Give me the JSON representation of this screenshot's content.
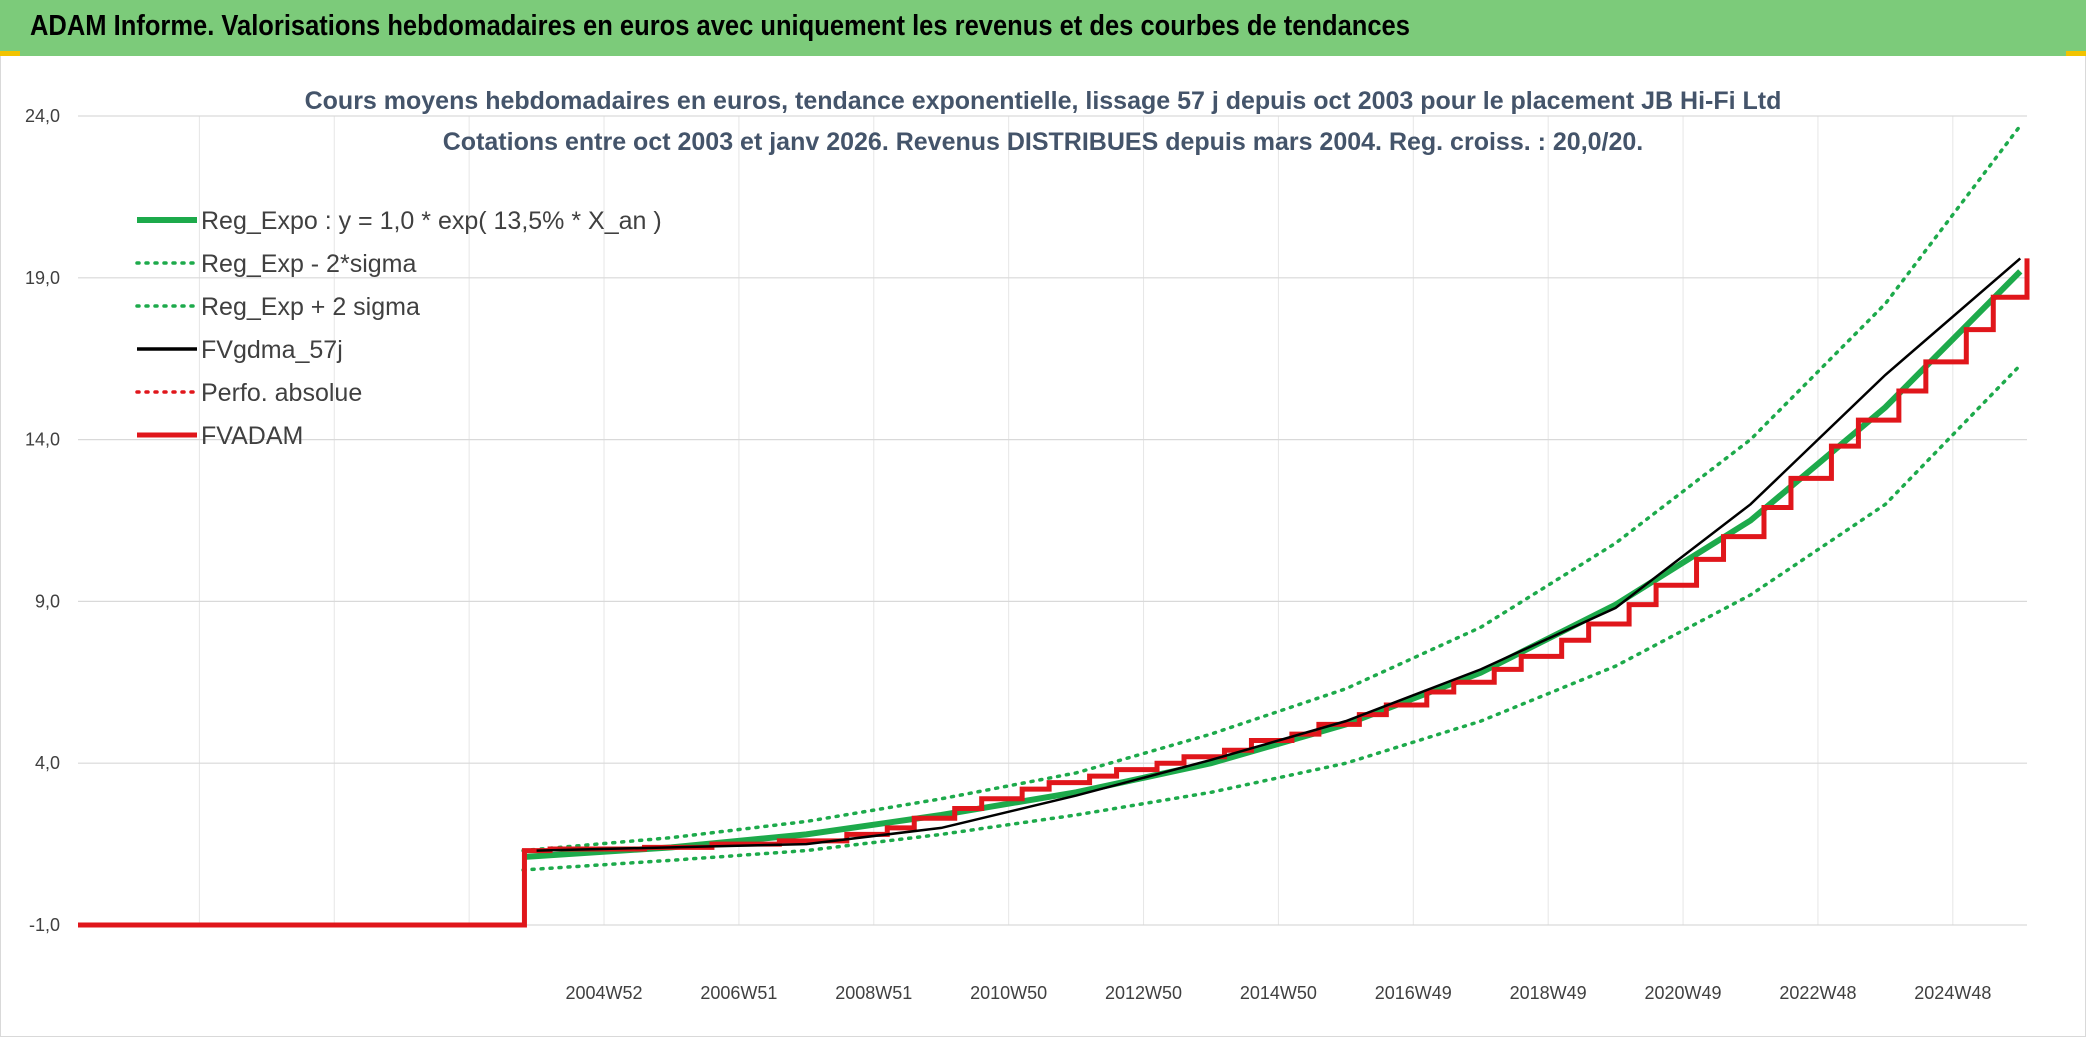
{
  "header": {
    "title": "ADAM Informe. Valorisations hebdomadaires en euros avec uniquement les revenus et des courbes de tendances"
  },
  "colors": {
    "header_bg": "#7CCB7A",
    "accent": "#F2C300",
    "green": "#1DAA4B",
    "red": "#E0161B",
    "black": "#000000",
    "title": "#44546A"
  },
  "chart_data": {
    "type": "line",
    "title": "Cours moyens hebdomadaires en euros, tendance exponentielle, lissage 57 j depuis oct 2003 pour le placement JB Hi-Fi Ltd",
    "subtitle": "Cotations entre oct 2003 et janv 2026. Revenus DISTRIBUES depuis mars 2004. Reg. croiss. : 20,0/20.",
    "xlabel": "",
    "ylabel": "",
    "x_range": [
      1997.2,
      2026.1
    ],
    "ylim": [
      -1.0,
      24.0
    ],
    "y_ticks": [
      "-1,0",
      "4,0",
      "9,0",
      "14,0",
      "19,0",
      "24,0"
    ],
    "y_tick_values": [
      -1,
      4,
      9,
      14,
      19,
      24
    ],
    "x_tick_labels": [
      "2004W52",
      "2006W51",
      "2008W51",
      "2010W50",
      "2012W50",
      "2014W50",
      "2016W49",
      "2018W49",
      "2020W49",
      "2022W48",
      "2024W48"
    ],
    "x_tick_values": [
      2005.0,
      2007.0,
      2009.0,
      2011.0,
      2013.0,
      2015.0,
      2017.0,
      2019.0,
      2021.0,
      2023.0,
      2025.0
    ],
    "grid": true,
    "legend_position": "top-left",
    "series": [
      {
        "name": "Reg_Expo : y = 1,0 * exp( 13,5% *  X_an )",
        "style": "solid-thick",
        "color": "#1DAA4B",
        "x": [
          2003.8,
          2006,
          2008,
          2010,
          2012,
          2014,
          2016,
          2018,
          2020,
          2022,
          2024,
          2026
        ],
        "y": [
          1.1,
          1.4,
          1.8,
          2.4,
          3.1,
          4.0,
          5.2,
          6.8,
          8.9,
          11.5,
          15.0,
          19.2
        ]
      },
      {
        "name": "Reg_Exp - 2*sigma",
        "style": "dotted",
        "color": "#1DAA4B",
        "x": [
          2003.8,
          2006,
          2008,
          2010,
          2012,
          2014,
          2016,
          2018,
          2020,
          2022,
          2024,
          2026
        ],
        "y": [
          0.7,
          1.0,
          1.3,
          1.8,
          2.4,
          3.1,
          4.0,
          5.3,
          7.0,
          9.2,
          12.0,
          16.3
        ]
      },
      {
        "name": "Reg_Exp + 2 sigma",
        "style": "dotted",
        "color": "#1DAA4B",
        "x": [
          2003.8,
          2006,
          2008,
          2010,
          2012,
          2014,
          2016,
          2018,
          2020,
          2022,
          2024,
          2026
        ],
        "y": [
          1.3,
          1.7,
          2.2,
          2.9,
          3.7,
          4.9,
          6.3,
          8.2,
          10.8,
          14.0,
          18.2,
          23.7
        ]
      },
      {
        "name": "FVgdma_57j",
        "style": "solid",
        "color": "#000000",
        "x": [
          2004.0,
          2006,
          2008,
          2010,
          2012,
          2014,
          2016,
          2018,
          2020,
          2022,
          2024,
          2026
        ],
        "y": [
          1.3,
          1.4,
          1.5,
          2.0,
          3.0,
          4.1,
          5.3,
          6.9,
          8.8,
          12.0,
          16.0,
          19.6
        ]
      },
      {
        "name": "Perfo. absolue",
        "style": "dotted",
        "color": "#E0161B",
        "x": [],
        "y": []
      },
      {
        "name": "FVADAM",
        "style": "step-thick",
        "color": "#E0161B",
        "x": [
          1997.2,
          2003.8,
          2003.82,
          2004.2,
          2005.6,
          2006.6,
          2007.6,
          2008.6,
          2009.2,
          2009.6,
          2010.2,
          2010.6,
          2011.2,
          2011.6,
          2012.2,
          2012.6,
          2013.2,
          2013.6,
          2014.2,
          2014.6,
          2015.2,
          2015.6,
          2016.2,
          2016.6,
          2017.2,
          2017.6,
          2018.2,
          2018.6,
          2019.2,
          2019.6,
          2020.2,
          2020.6,
          2021.2,
          2021.6,
          2022.2,
          2022.6,
          2023.2,
          2023.6,
          2024.2,
          2024.6,
          2025.2,
          2025.6,
          2026.1
        ],
        "y": [
          -1.0,
          -1.0,
          1.3,
          1.35,
          1.4,
          1.5,
          1.6,
          1.8,
          2.0,
          2.3,
          2.6,
          2.9,
          3.2,
          3.4,
          3.6,
          3.8,
          4.0,
          4.2,
          4.4,
          4.7,
          4.9,
          5.2,
          5.5,
          5.8,
          6.2,
          6.5,
          6.9,
          7.3,
          7.8,
          8.3,
          8.9,
          9.5,
          10.3,
          11.0,
          11.9,
          12.8,
          13.8,
          14.6,
          15.5,
          16.4,
          17.4,
          18.4,
          19.6
        ]
      }
    ]
  }
}
